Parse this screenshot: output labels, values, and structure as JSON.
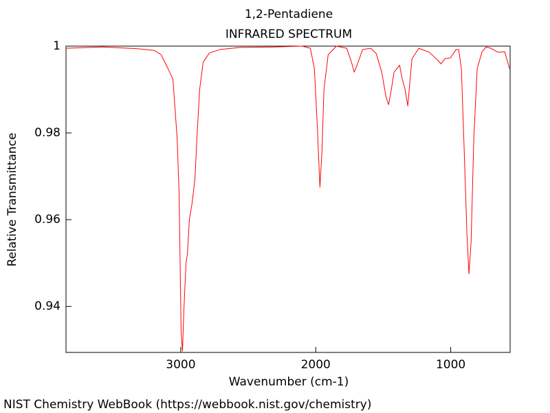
{
  "chart_data": {
    "type": "line",
    "title": "1,2-Pentadiene",
    "subtitle": "INFRARED SPECTRUM",
    "x_label": "Wavenumber (cm-1)",
    "y_label": "Relative Transmittance",
    "xlim": [
      3850,
      560
    ],
    "ylim": [
      0.9294,
      1
    ],
    "xticks": [
      3000,
      2000,
      1000
    ],
    "yticks": [
      0.94,
      0.96,
      0.98,
      1
    ],
    "color": "#ff0000",
    "x": [
      3852,
      3577,
      3323,
      3195,
      3145,
      3094,
      3058,
      3027,
      3012,
      2997,
      2987,
      2977,
      2961,
      2951,
      2936,
      2916,
      2895,
      2880,
      2860,
      2834,
      2788,
      2712,
      2559,
      2305,
      2101,
      2040,
      2010,
      1989,
      1969,
      1954,
      1939,
      1908,
      1847,
      1771,
      1735,
      1715,
      1694,
      1653,
      1593,
      1552,
      1511,
      1480,
      1460,
      1440,
      1420,
      1399,
      1379,
      1359,
      1338,
      1318,
      1303,
      1287,
      1236,
      1160,
      1094,
      1073,
      1043,
      1002,
      961,
      941,
      921,
      900,
      880,
      865,
      849,
      829,
      804,
      768,
      738,
      702,
      651,
      600,
      564
    ],
    "values": [
      0.9995,
      0.9998,
      0.9994,
      0.999,
      0.998,
      0.9948,
      0.9924,
      0.9789,
      0.966,
      0.934,
      0.9297,
      0.939,
      0.95,
      0.952,
      0.96,
      0.9638,
      0.9694,
      0.9789,
      0.99,
      0.9963,
      0.9984,
      0.9992,
      0.9997,
      0.9998,
      1.0,
      0.9995,
      0.9948,
      0.982,
      0.9675,
      0.9757,
      0.99,
      0.998,
      1.0,
      0.9995,
      0.9963,
      0.994,
      0.9956,
      0.9992,
      0.9995,
      0.9983,
      0.994,
      0.9884,
      0.9865,
      0.99,
      0.994,
      0.9948,
      0.9956,
      0.9924,
      0.99,
      0.9862,
      0.9916,
      0.9971,
      0.9995,
      0.9986,
      0.9967,
      0.9959,
      0.9971,
      0.9973,
      0.9992,
      0.9992,
      0.9948,
      0.9757,
      0.9567,
      0.9475,
      0.955,
      0.9789,
      0.9948,
      0.9987,
      0.9998,
      0.9995,
      0.9986,
      0.9987,
      0.9948
    ]
  },
  "footer": "NIST Chemistry WebBook (https://webbook.nist.gov/chemistry)"
}
